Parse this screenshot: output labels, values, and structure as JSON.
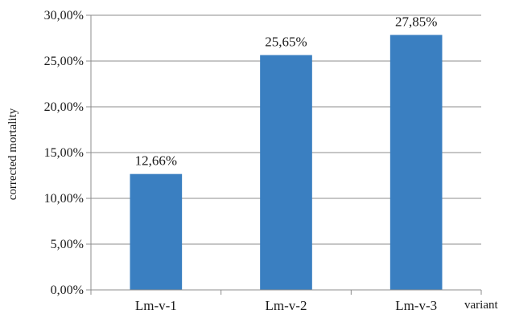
{
  "chart_data": {
    "type": "bar",
    "categories": [
      "Lm-v-1",
      "Lm-v-2",
      "Lm-v-3"
    ],
    "values": [
      12.66,
      25.65,
      27.85
    ],
    "value_labels": [
      "12,66%",
      "25,65%",
      "27,85%"
    ],
    "title": "",
    "xlabel": "variant",
    "ylabel": "corrected mortality",
    "ylim": [
      0,
      30
    ],
    "yticks": [
      0,
      5,
      10,
      15,
      20,
      25,
      30
    ],
    "ytick_labels": [
      "0,00%",
      "5,00%",
      "10,00%",
      "15,00%",
      "20,00%",
      "25,00%",
      "30,00%"
    ],
    "grid": true,
    "legend": "none",
    "bar_color": "#3a7fc1",
    "grid_color": "#8c8c8c"
  }
}
